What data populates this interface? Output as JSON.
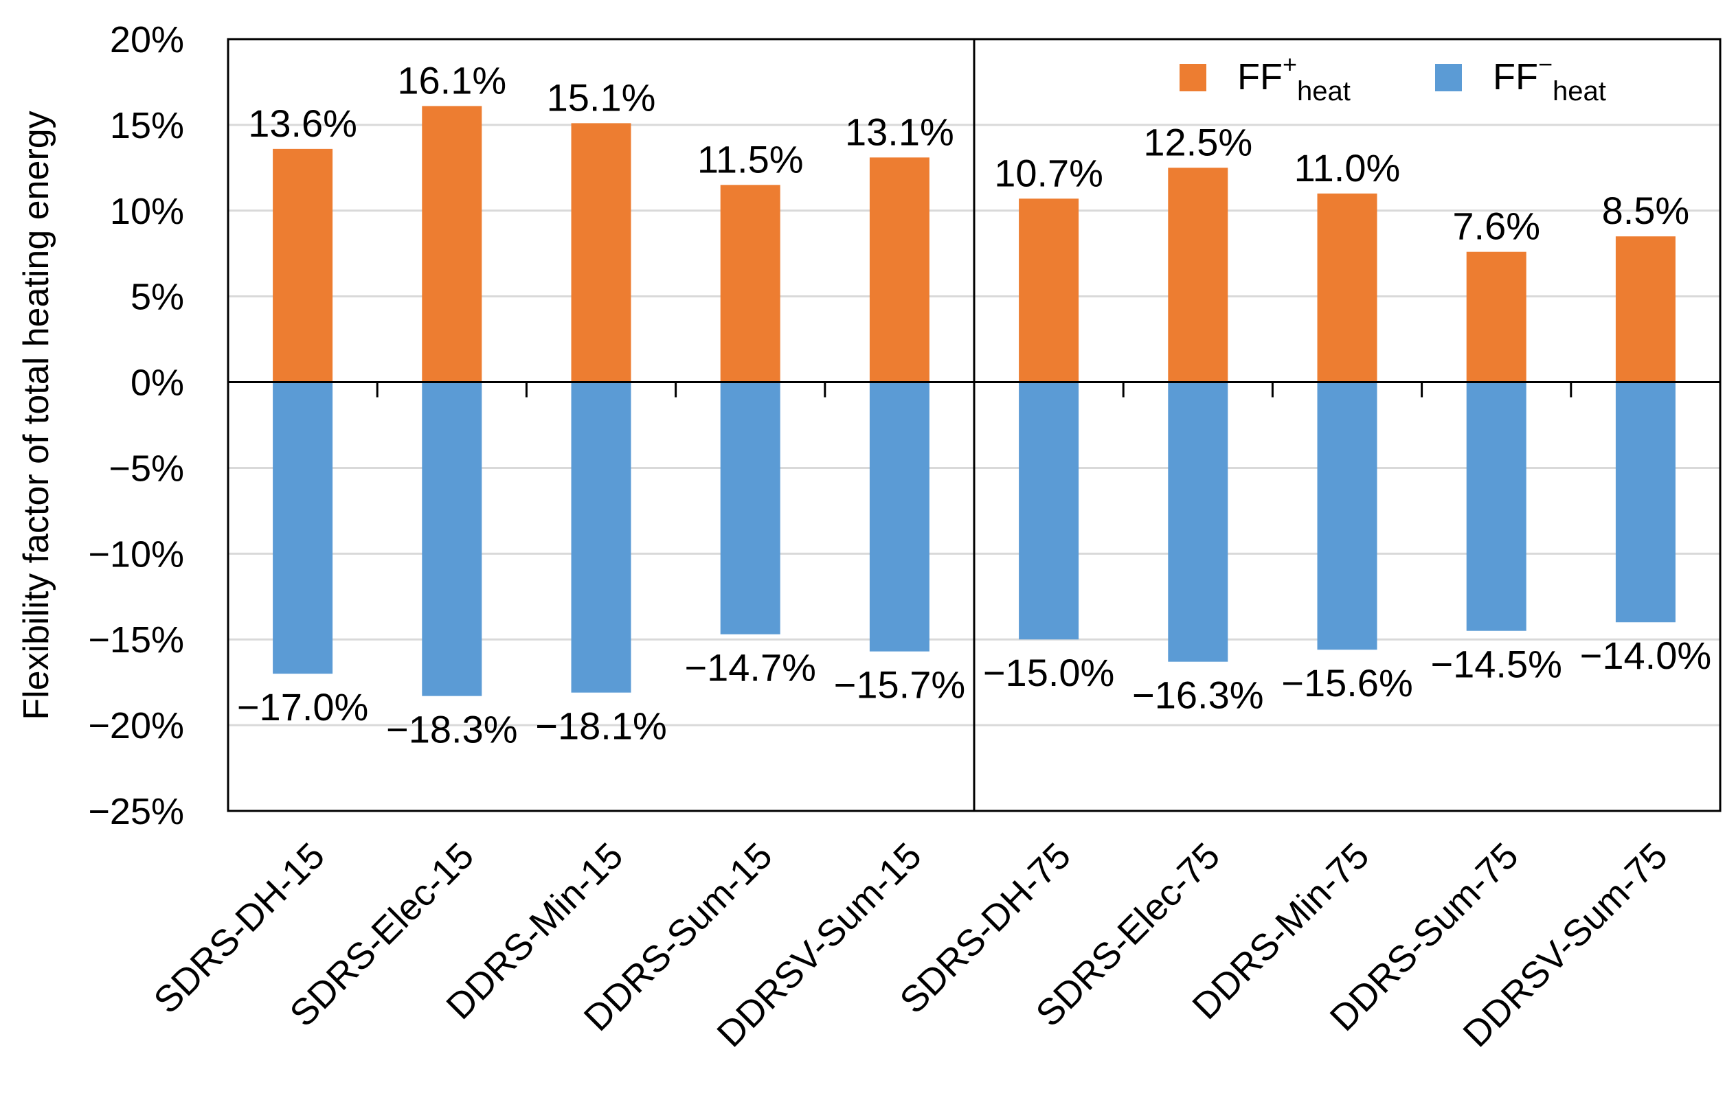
{
  "chart_data": {
    "type": "bar",
    "ylabel": "Flexibility factor of total heating energy",
    "ylim": [
      -25,
      20
    ],
    "yticks": [
      20,
      15,
      10,
      5,
      0,
      -5,
      -10,
      -15,
      -20,
      -25
    ],
    "ytick_labels": [
      "20%",
      "15%",
      "10%",
      "5%",
      "0%",
      "−5%",
      "−10%",
      "−15%",
      "−20%",
      "−25%"
    ],
    "categories": [
      "SDRS-DH-15",
      "SDRS-Elec-15",
      "DDRS-Min-15",
      "DDRS-Sum-15",
      "DDRSV-Sum-15",
      "SDRS-DH-75",
      "SDRS-Elec-75",
      "DDRS-Min-75",
      "DDRS-Sum-75",
      "DDRSV-Sum-75"
    ],
    "grid": true,
    "legend_position": "top-right",
    "series": [
      {
        "name": "FF+heat",
        "legend_main": "FF",
        "legend_sup": "+",
        "legend_sub": "heat",
        "color": "#ED7D31",
        "values": [
          13.6,
          16.1,
          15.1,
          11.5,
          13.1,
          10.7,
          12.5,
          11.0,
          7.6,
          8.5
        ],
        "labels": [
          "13.6%",
          "16.1%",
          "15.1%",
          "11.5%",
          "13.1%",
          "10.7%",
          "12.5%",
          "11.0%",
          "7.6%",
          "8.5%"
        ]
      },
      {
        "name": "FF−heat",
        "legend_main": "FF",
        "legend_sup": "−",
        "legend_sub": "heat",
        "color": "#5B9BD5",
        "values": [
          -17.0,
          -18.3,
          -18.1,
          -14.7,
          -15.7,
          -15.0,
          -16.3,
          -15.6,
          -14.5,
          -14.0
        ],
        "labels": [
          "−17.0%",
          "−18.3%",
          "−18.1%",
          "−14.7%",
          "−15.7%",
          "−15.0%",
          "−16.3%",
          "−15.6%",
          "−14.5%",
          "−14.0%"
        ]
      }
    ]
  }
}
